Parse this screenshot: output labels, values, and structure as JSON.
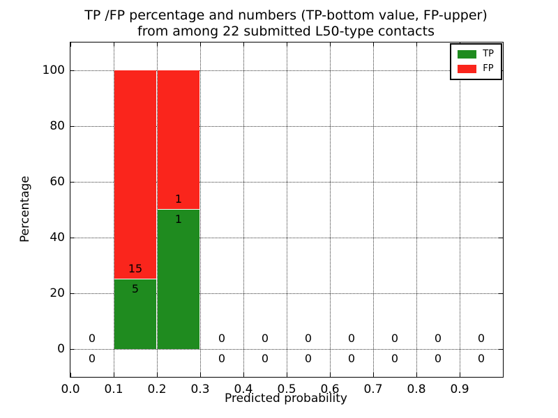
{
  "chart_data": {
    "type": "bar",
    "stacked": true,
    "title_line1": "TP /FP percentage and numbers (TP-bottom value, FP-upper)",
    "title_line2": "from among 22 submitted L50-type contacts",
    "total_submitted_contacts": 22,
    "xlabel": "Predicted probability",
    "ylabel": "Percentage",
    "xlim": [
      0.0,
      1.0
    ],
    "ylim": [
      -10,
      110
    ],
    "xtick_labels": [
      "0.0",
      "0.1",
      "0.2",
      "0.3",
      "0.4",
      "0.5",
      "0.6",
      "0.7",
      "0.8",
      "0.9"
    ],
    "ytick_values": [
      0,
      20,
      40,
      60,
      80,
      100
    ],
    "grid": {
      "style": "dotted",
      "on": true
    },
    "bin_width": 0.1,
    "bin_centers": [
      0.05,
      0.15,
      0.25,
      0.35,
      0.45,
      0.55,
      0.65,
      0.75,
      0.85,
      0.95
    ],
    "series": [
      {
        "name": "TP",
        "color": "#1f8b1f",
        "counts": [
          0,
          5,
          1,
          0,
          0,
          0,
          0,
          0,
          0,
          0
        ],
        "percentages": [
          0,
          25,
          50,
          0,
          0,
          0,
          0,
          0,
          0,
          0
        ]
      },
      {
        "name": "FP",
        "color": "#fa251c",
        "counts": [
          0,
          15,
          1,
          0,
          0,
          0,
          0,
          0,
          0,
          0
        ],
        "percentages": [
          0,
          75,
          50,
          0,
          0,
          0,
          0,
          0,
          0,
          0
        ]
      }
    ],
    "legend": {
      "position": "upper-right"
    }
  }
}
